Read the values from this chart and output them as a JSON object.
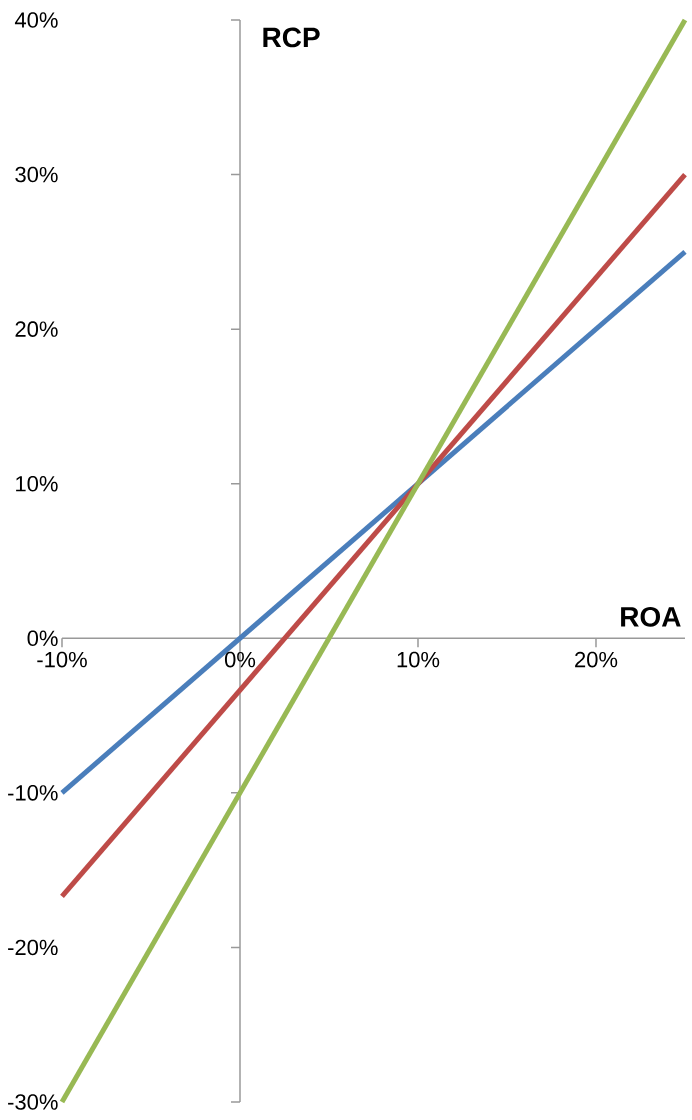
{
  "chart_data": {
    "type": "line",
    "xlabel": "ROA",
    "ylabel": "RCP",
    "x": [
      -10,
      25
    ],
    "xlim": [
      -10,
      25
    ],
    "ylim": [
      -30,
      40
    ],
    "xticks": [
      {
        "value": -10,
        "label": "-10%"
      },
      {
        "value": 0,
        "label": "0%"
      },
      {
        "value": 10,
        "label": "10%"
      },
      {
        "value": 20,
        "label": "20%"
      }
    ],
    "yticks": [
      {
        "value": -30,
        "label": "-30%"
      },
      {
        "value": -20,
        "label": "-20%"
      },
      {
        "value": -10,
        "label": "-10%"
      },
      {
        "value": 0,
        "label": "0%"
      },
      {
        "value": 10,
        "label": "10%"
      },
      {
        "value": 20,
        "label": "20%"
      },
      {
        "value": 30,
        "label": "30%"
      },
      {
        "value": 40,
        "label": "40%"
      }
    ],
    "series": [
      {
        "color": "#4a7ebb",
        "values": [
          -10,
          25
        ]
      },
      {
        "color": "#be4b48",
        "values": [
          -16.7,
          30
        ]
      },
      {
        "color": "#98b954",
        "values": [
          -30,
          40
        ]
      }
    ]
  }
}
